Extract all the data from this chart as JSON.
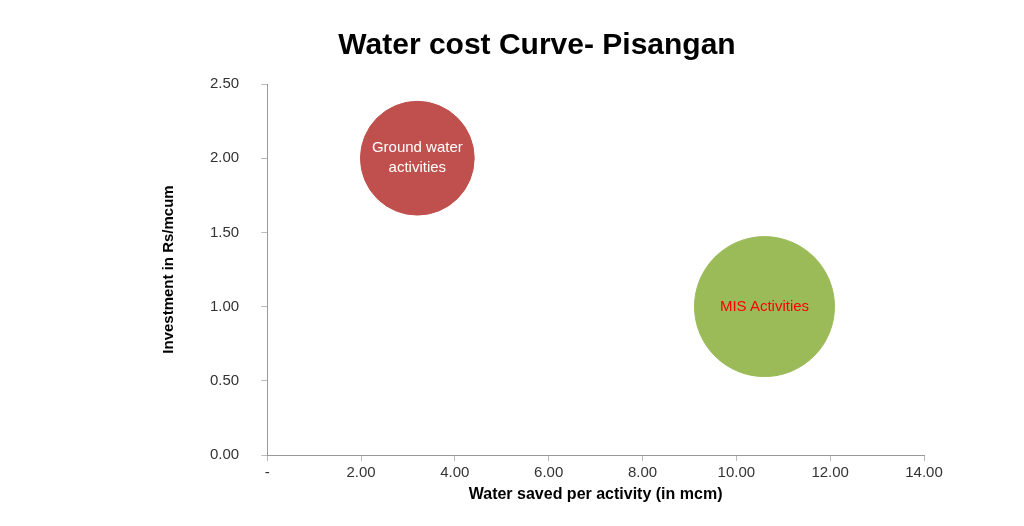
{
  "chart_data": {
    "type": "bubble",
    "title": "Water cost Curve- Pisangan",
    "xlabel": "Water saved per activity (in mcm)",
    "ylabel": "Investment in Rs/mcum",
    "series": [
      {
        "name": "Ground water activities",
        "color": "#c0504d",
        "x": [
          3.2
        ],
        "values": [
          2.0
        ],
        "sizes": [
          0.66
        ]
      },
      {
        "name": "MIS Activities",
        "color": "#9bbb59",
        "x": [
          10.6
        ],
        "values": [
          1.0
        ],
        "sizes": [
          1
        ]
      }
    ],
    "xlim": [
      0,
      14
    ],
    "xticks": [
      {
        "value": 0,
        "label": "-"
      },
      {
        "value": 2,
        "label": "2.00"
      },
      {
        "value": 4,
        "label": "4.00"
      },
      {
        "value": 6,
        "label": "6.00"
      },
      {
        "value": 8,
        "label": "8.00"
      },
      {
        "value": 10,
        "label": "10.00"
      },
      {
        "value": 12,
        "label": "12.00"
      },
      {
        "value": 14,
        "label": "14.00"
      }
    ],
    "ylim": [
      0,
      2.5
    ],
    "yticks": [
      {
        "value": 0,
        "label": "0.00"
      },
      {
        "value": 0.5,
        "label": "0.50"
      },
      {
        "value": 1,
        "label": "1.00"
      },
      {
        "value": 1.5,
        "label": "1.50"
      },
      {
        "value": 2,
        "label": "2.00"
      },
      {
        "value": 2.5,
        "label": "2.50"
      }
    ],
    "grid": false,
    "legend": false
  }
}
